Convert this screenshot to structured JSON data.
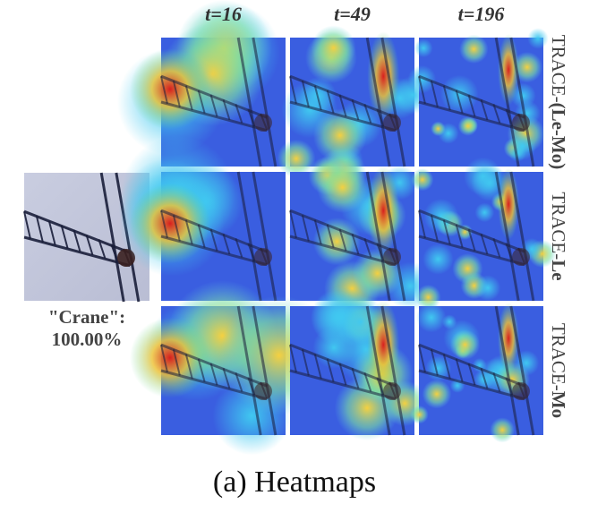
{
  "columns": [
    "t=16",
    "t=49",
    "t=196"
  ],
  "rows": [
    {
      "prefix": "TRACE-",
      "variant": "(Le-Mo)"
    },
    {
      "prefix": "TRACE-",
      "variant": "Le"
    },
    {
      "prefix": "TRACE-",
      "variant": "Mo"
    }
  ],
  "input": {
    "label": "\"Crane\":",
    "confidence": "100.00%"
  },
  "caption": "(a) Heatmaps"
}
